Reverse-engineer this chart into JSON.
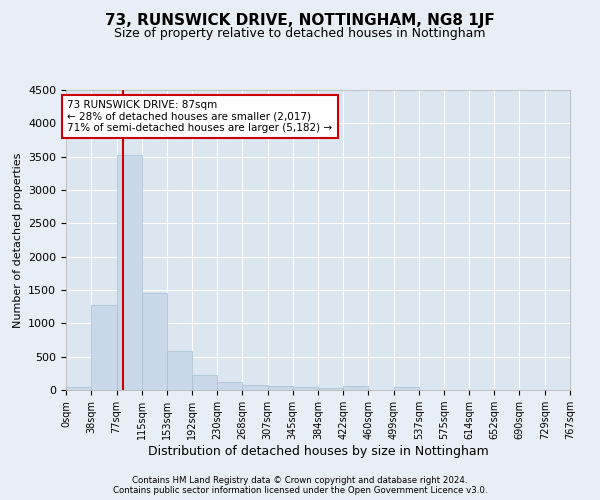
{
  "title": "73, RUNSWICK DRIVE, NOTTINGHAM, NG8 1JF",
  "subtitle": "Size of property relative to detached houses in Nottingham",
  "xlabel": "Distribution of detached houses by size in Nottingham",
  "ylabel": "Number of detached properties",
  "footnote1": "Contains HM Land Registry data © Crown copyright and database right 2024.",
  "footnote2": "Contains public sector information licensed under the Open Government Licence v3.0.",
  "annotation_line1": "73 RUNSWICK DRIVE: 87sqm",
  "annotation_line2": "← 28% of detached houses are smaller (2,017)",
  "annotation_line3": "71% of semi-detached houses are larger (5,182) →",
  "bar_color": "#c9d9ea",
  "bar_edge_color": "#a8bece",
  "vline_color": "#cc0000",
  "vline_x": 87,
  "bin_edges": [
    0,
    38,
    77,
    115,
    153,
    192,
    230,
    268,
    307,
    345,
    384,
    422,
    460,
    499,
    537,
    575,
    614,
    652,
    690,
    729,
    767
  ],
  "bar_heights": [
    50,
    1270,
    3530,
    1460,
    580,
    230,
    115,
    75,
    55,
    40,
    35,
    55,
    0,
    50,
    0,
    0,
    0,
    0,
    0,
    0
  ],
  "ylim": [
    0,
    4500
  ],
  "yticks": [
    0,
    500,
    1000,
    1500,
    2000,
    2500,
    3000,
    3500,
    4000,
    4500
  ],
  "background_color": "#e8eef5",
  "axes_bg_color": "#dce6f0",
  "grid_color": "#ffffff",
  "title_fontsize": 11,
  "subtitle_fontsize": 9,
  "ylabel_fontsize": 8,
  "xlabel_fontsize": 9,
  "ytick_fontsize": 8,
  "xtick_fontsize": 7
}
